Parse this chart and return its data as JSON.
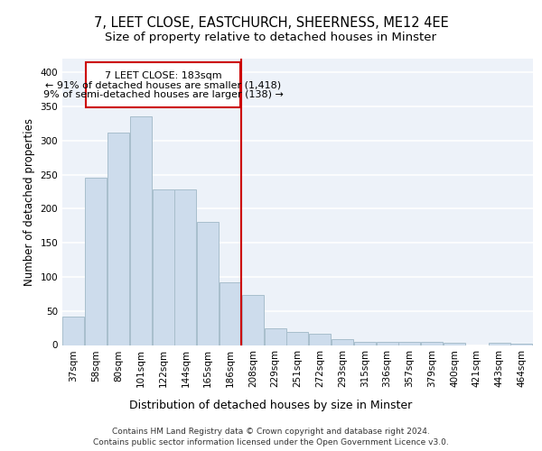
{
  "title1": "7, LEET CLOSE, EASTCHURCH, SHEERNESS, ME12 4EE",
  "title2": "Size of property relative to detached houses in Minster",
  "xlabel": "Distribution of detached houses by size in Minster",
  "ylabel": "Number of detached properties",
  "categories": [
    "37sqm",
    "58sqm",
    "80sqm",
    "101sqm",
    "122sqm",
    "144sqm",
    "165sqm",
    "186sqm",
    "208sqm",
    "229sqm",
    "251sqm",
    "272sqm",
    "293sqm",
    "315sqm",
    "336sqm",
    "357sqm",
    "379sqm",
    "400sqm",
    "421sqm",
    "443sqm",
    "464sqm"
  ],
  "values": [
    42,
    245,
    312,
    335,
    228,
    228,
    180,
    92,
    74,
    25,
    19,
    17,
    9,
    5,
    5,
    4,
    4,
    3,
    0,
    3,
    2
  ],
  "bar_color": "#cddcec",
  "bar_edge_color": "#a8becc",
  "vline_x_index": 7,
  "vline_color": "#cc0000",
  "annotation_title": "7 LEET CLOSE: 183sqm",
  "annotation_line1": "← 91% of detached houses are smaller (1,418)",
  "annotation_line2": "9% of semi-detached houses are larger (138) →",
  "annotation_box_color": "#cc0000",
  "annotation_bg": "#ffffff",
  "ylim": [
    0,
    420
  ],
  "yticks": [
    0,
    50,
    100,
    150,
    200,
    250,
    300,
    350,
    400
  ],
  "footnote1": "Contains HM Land Registry data © Crown copyright and database right 2024.",
  "footnote2": "Contains public sector information licensed under the Open Government Licence v3.0.",
  "bg_color": "#edf2f9",
  "title1_fontsize": 10.5,
  "title2_fontsize": 9.5,
  "ylabel_fontsize": 8.5,
  "xlabel_fontsize": 9,
  "tick_fontsize": 7.5,
  "annot_fontsize": 8,
  "footnote_fontsize": 6.5
}
